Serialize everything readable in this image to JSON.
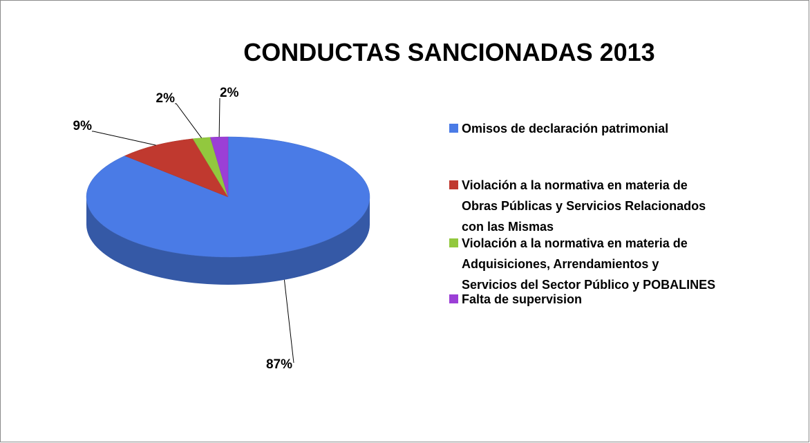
{
  "chart_data": {
    "type": "pie3d",
    "title": "CONDUCTAS SANCIONADAS 2013",
    "categories": [
      "Omisos de declaración patrimonial",
      "Violación a la normativa en materia de Obras Públicas y Servicios Relacionados con las Mismas",
      "Violación a la normativa en materia de Adquisiciones, Arrendamientos y Servicios del Sector Público y POBALINES",
      "Falta de supervision"
    ],
    "values": [
      87,
      9,
      2,
      2
    ],
    "value_labels": [
      "87%",
      "9%",
      "2%",
      "2%"
    ],
    "colors": [
      "#4a7be6",
      "#c0392f",
      "#92c83e",
      "#9b3fd6"
    ],
    "legend": "right"
  }
}
